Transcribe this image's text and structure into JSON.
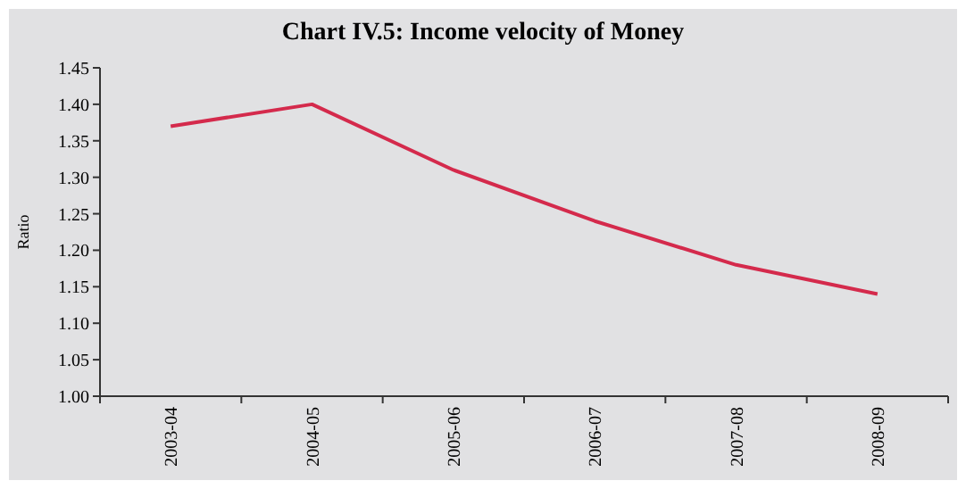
{
  "chart_data": {
    "type": "line",
    "title": "Chart IV.5: Income velocity of Money",
    "ylabel": "Ratio",
    "categories": [
      "2003-04",
      "2004-05",
      "2005-06",
      "2006-07",
      "2007-08",
      "2008-09"
    ],
    "series": [
      {
        "color": "#d42a4c",
        "values": [
          1.37,
          1.4,
          1.31,
          1.24,
          1.18,
          1.14
        ]
      }
    ],
    "ylim": [
      1.0,
      1.45
    ],
    "yticks": [
      {
        "value": 1.0,
        "label": "1.00"
      },
      {
        "value": 1.05,
        "label": "1.05"
      },
      {
        "value": 1.1,
        "label": "1.10"
      },
      {
        "value": 1.15,
        "label": "1.15"
      },
      {
        "value": 1.2,
        "label": "1.20"
      },
      {
        "value": 1.25,
        "label": "1.25"
      },
      {
        "value": 1.3,
        "label": "1.30"
      },
      {
        "value": 1.35,
        "label": "1.35"
      },
      {
        "value": 1.4,
        "label": "1.40"
      },
      {
        "value": 1.45,
        "label": "1.45"
      }
    ],
    "grid": false,
    "marker": "none",
    "line_style": "solid"
  }
}
